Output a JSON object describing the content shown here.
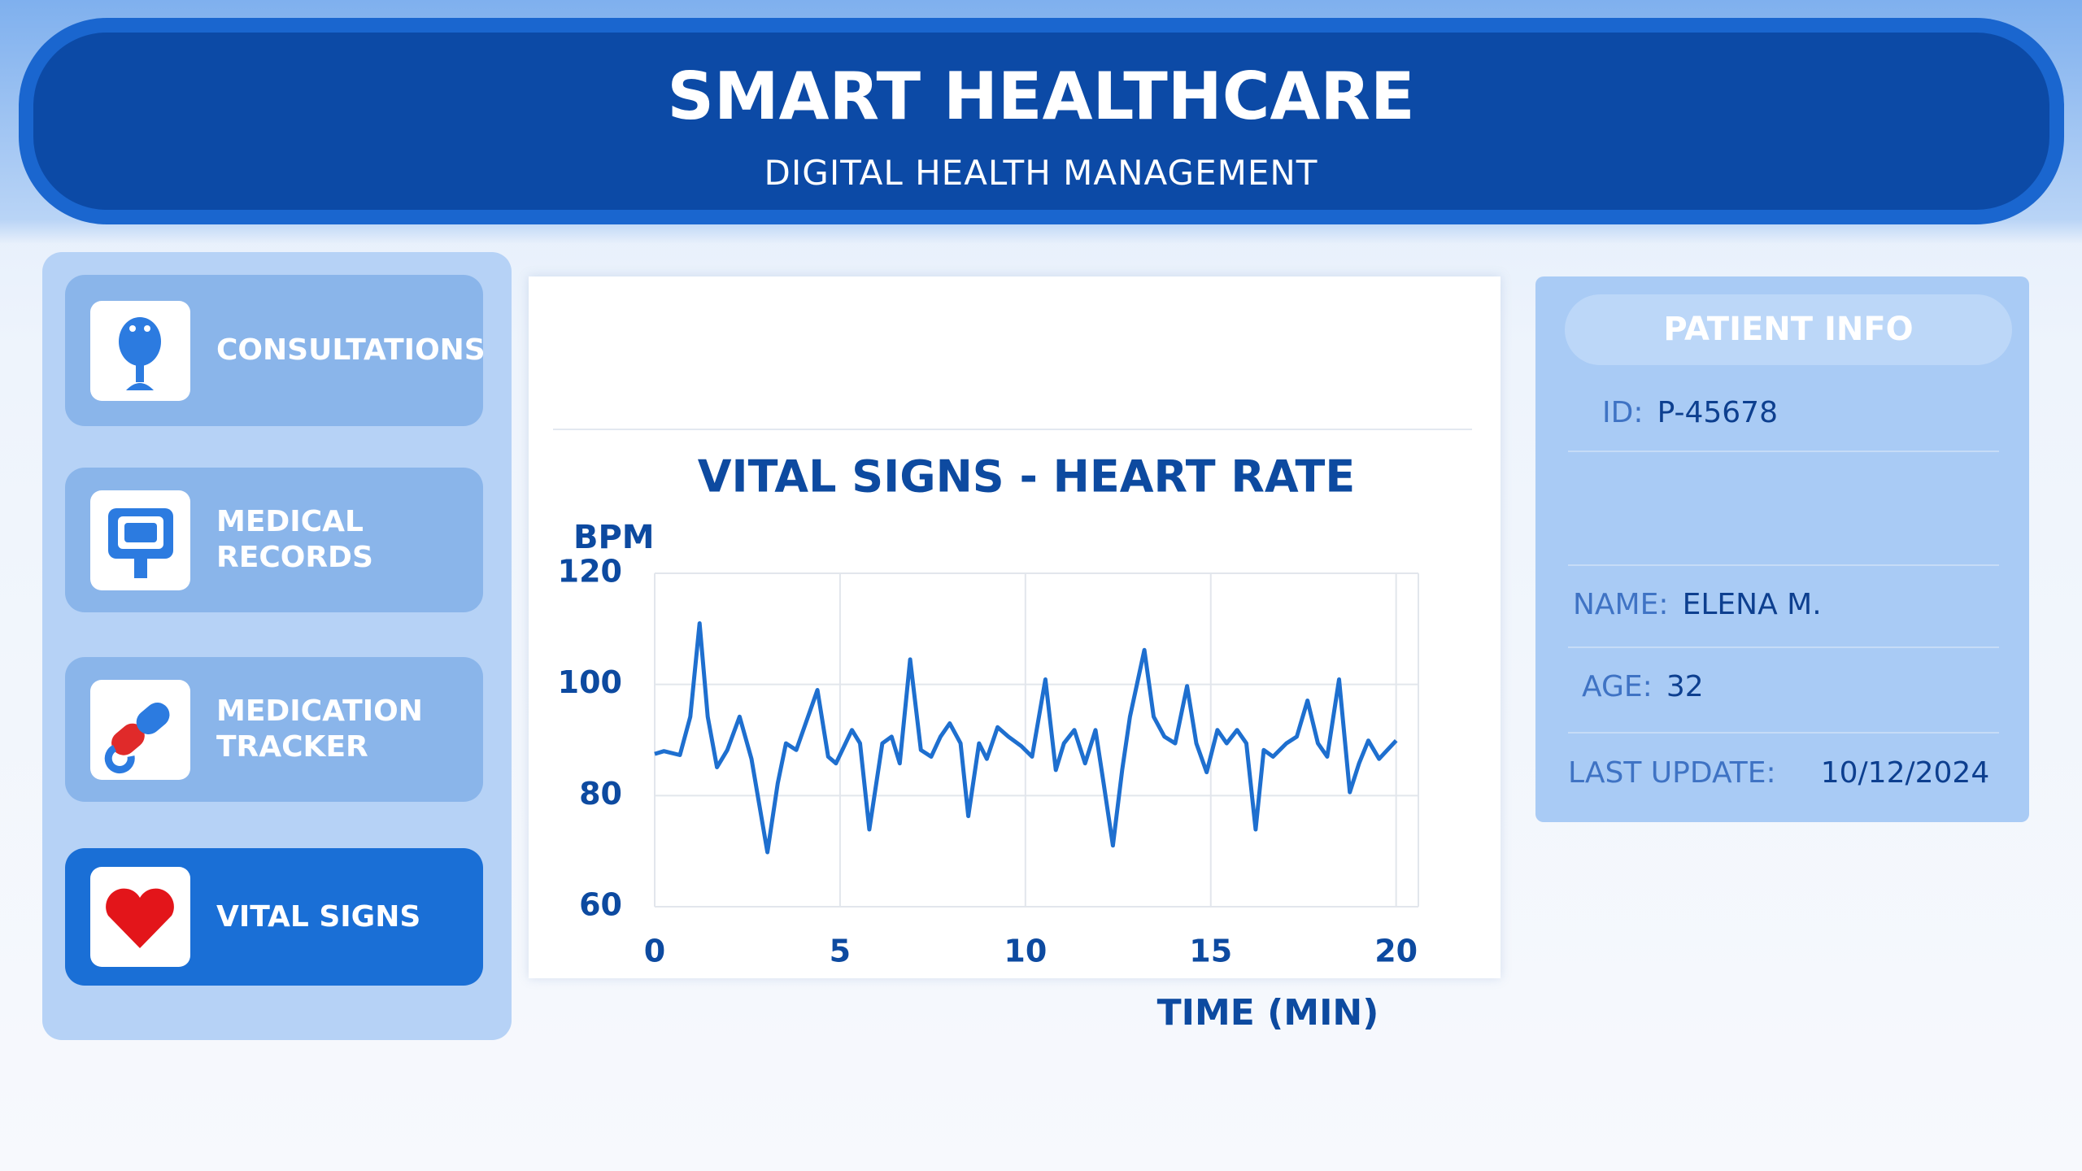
{
  "header": {
    "title": "SMART HEALTHCARE",
    "subtitle": "DIGITAL HEALTH MANAGEMENT"
  },
  "nav": {
    "items": [
      {
        "label": "CONSULTATIONS"
      },
      {
        "label": "MEDICAL RECORDS"
      },
      {
        "label": "MEDICATION TRACKER"
      },
      {
        "label": "VITAL SIGNS"
      }
    ]
  },
  "chart_data": {
    "type": "line",
    "title": "VITAL SIGNS - HEART RATE",
    "y_label": "BPM",
    "x_label": "TIME (MIN)",
    "x": [
      0,
      0.25,
      0.68,
      0.96,
      1.21,
      1.43,
      1.68,
      1.96,
      2.29,
      2.61,
      3.04,
      3.32,
      3.54,
      3.82,
      4.39,
      4.68,
      4.89,
      5.32,
      5.54,
      5.79,
      6.14,
      6.39,
      6.61,
      6.89,
      7.18,
      7.46,
      7.71,
      7.96,
      8.25,
      8.46,
      8.75,
      8.96,
      9.25,
      9.54,
      9.89,
      10.18,
      10.54,
      10.82,
      11.04,
      11.32,
      11.61,
      11.89,
      12.11,
      12.36,
      12.61,
      12.82,
      13.21,
      13.46,
      13.75,
      14.04,
      14.36,
      14.61,
      14.89,
      15.18,
      15.43,
      15.71,
      15.96,
      16.21,
      16.43,
      16.68,
      17.04,
      17.32,
      17.61,
      17.89,
      18.14,
      18.46,
      18.75,
      19.0,
      19.25,
      19.54,
      20
    ],
    "values": [
      87.5,
      88.0,
      87.3,
      94.2,
      111.0,
      94.2,
      85.1,
      88.2,
      94.2,
      86.6,
      69.8,
      82.2,
      89.4,
      88.2,
      99.0,
      87.0,
      85.8,
      91.8,
      89.4,
      73.9,
      89.4,
      90.6,
      85.8,
      104.5,
      88.2,
      87.0,
      90.6,
      93.0,
      89.4,
      76.3,
      89.4,
      86.6,
      92.3,
      90.6,
      88.9,
      87.0,
      100.9,
      84.6,
      89.4,
      91.8,
      85.8,
      91.8,
      82.2,
      71.0,
      84.6,
      94.2,
      106.2,
      94.2,
      90.6,
      89.4,
      99.7,
      89.4,
      84.2,
      91.8,
      89.4,
      91.8,
      89.4,
      73.9,
      88.2,
      87.0,
      89.4,
      90.6,
      97.1,
      89.4,
      87.0,
      100.9,
      80.6,
      85.8,
      89.9,
      86.6,
      89.9
    ],
    "color": "#1e6fcf",
    "xlim": [
      0,
      20.6
    ],
    "xticks": [
      0,
      5,
      10,
      15,
      20
    ],
    "ylim": [
      60,
      120
    ],
    "yticks": [
      60,
      80,
      100,
      120
    ],
    "grid": true
  },
  "patient": {
    "title": "PATIENT INFO",
    "fields": [
      {
        "label": "ID:",
        "value": "P-45678"
      },
      {
        "label": "NAME:",
        "value": "ELENA M."
      },
      {
        "label": "AGE:",
        "value": "32"
      },
      {
        "label": "LAST UPDATE:",
        "value": "10/12/2024"
      }
    ]
  }
}
